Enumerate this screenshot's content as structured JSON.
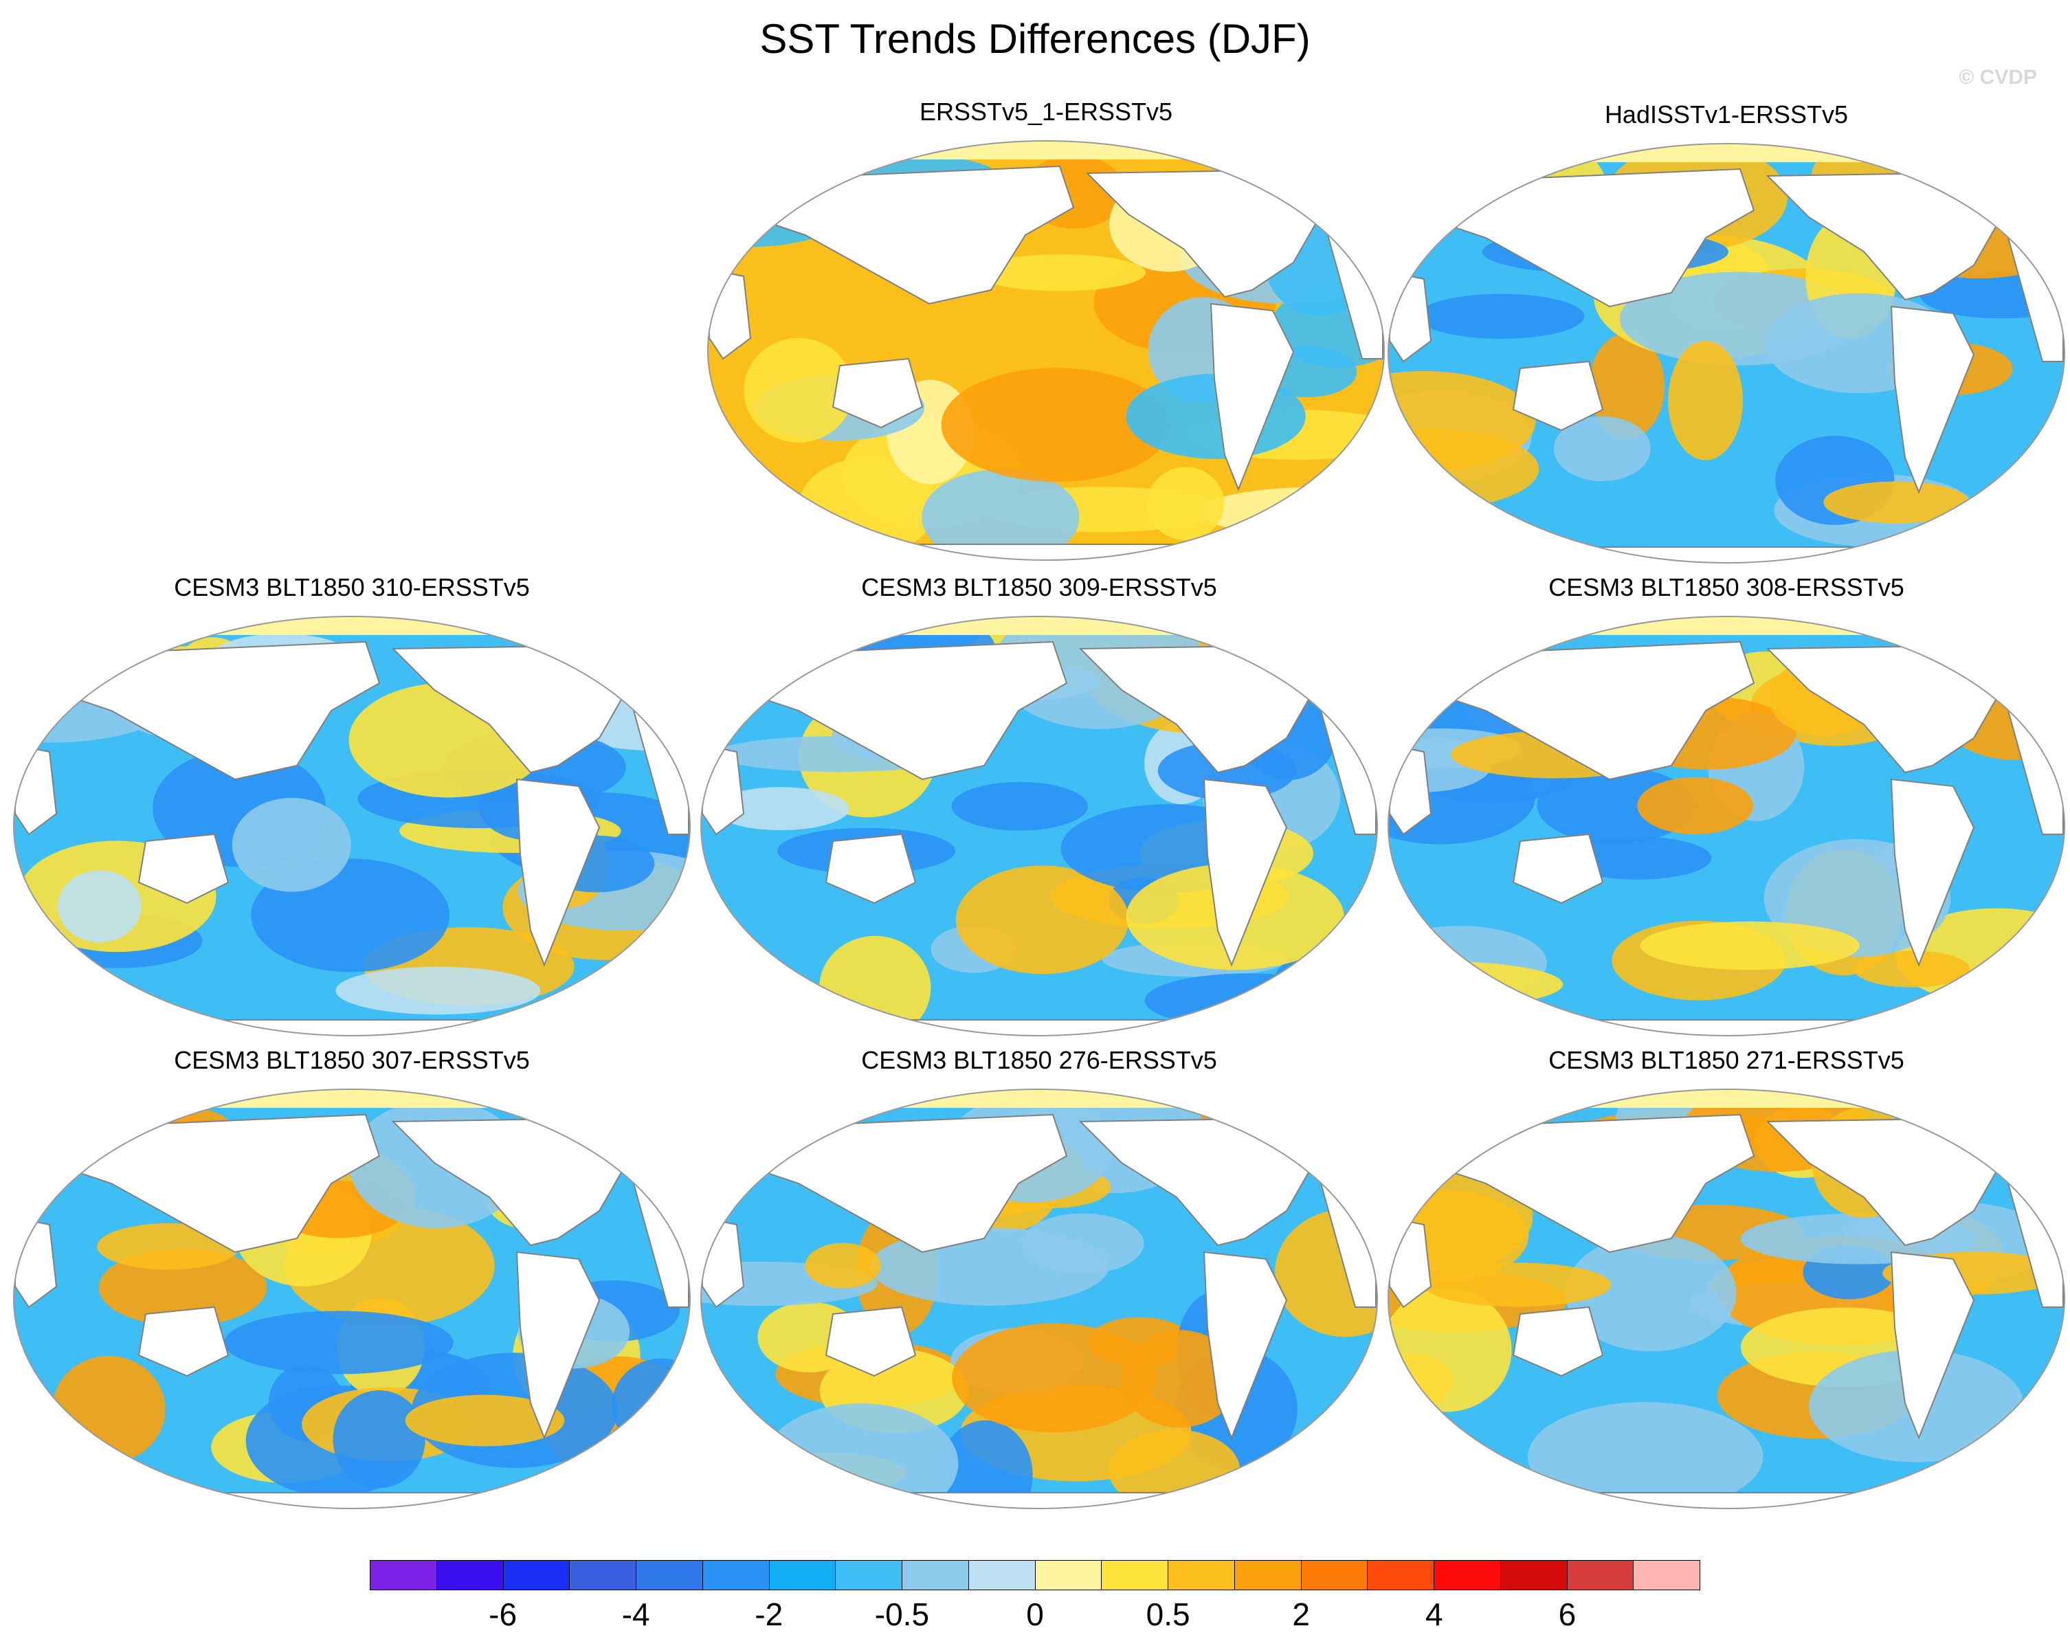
{
  "figure": {
    "title": "SST Trends Differences (DJF)",
    "watermark": "© CVDP"
  },
  "panels": [
    {
      "title": "ERSSTv5_1-ERSSTv5",
      "dominant": "warm"
    },
    {
      "title": "HadISSTv1-ERSSTv5",
      "dominant": "mixed"
    },
    {
      "title": "CESM3 BLT1850 310-ERSSTv5",
      "dominant": "cool"
    },
    {
      "title": "CESM3 BLT1850 309-ERSSTv5",
      "dominant": "cool"
    },
    {
      "title": "CESM3 BLT1850 308-ERSSTv5",
      "dominant": "mixed"
    },
    {
      "title": "CESM3 BLT1850 307-ERSSTv5",
      "dominant": "mixed"
    },
    {
      "title": "CESM3 BLT1850 276-ERSSTv5",
      "dominant": "mixed"
    },
    {
      "title": "CESM3 BLT1850 271-ERSSTv5",
      "dominant": "mixed"
    }
  ],
  "colorbar": {
    "colors": [
      "#7b22e6",
      "#3a10f0",
      "#1a2ef5",
      "#3a5fe0",
      "#2f78ea",
      "#2a92f5",
      "#12aef5",
      "#3ebef5",
      "#8ccaec",
      "#bde0f2",
      "#fff5a0",
      "#fde23c",
      "#fbbf1c",
      "#fba10c",
      "#fc7a08",
      "#fc4a0a",
      "#fc0a0a",
      "#d40a0a",
      "#d63c3c",
      "#ffb4b4"
    ],
    "labels": [
      "-6",
      "-4",
      "-2",
      "-0.5",
      "0",
      "0.5",
      "2",
      "4",
      "6"
    ]
  },
  "colors": {
    "land": "#ffffff",
    "coastline": "#808080",
    "neutral_warm": "#fff5a0",
    "warm": "#fbbf1c",
    "cool": "#3ebef5"
  }
}
